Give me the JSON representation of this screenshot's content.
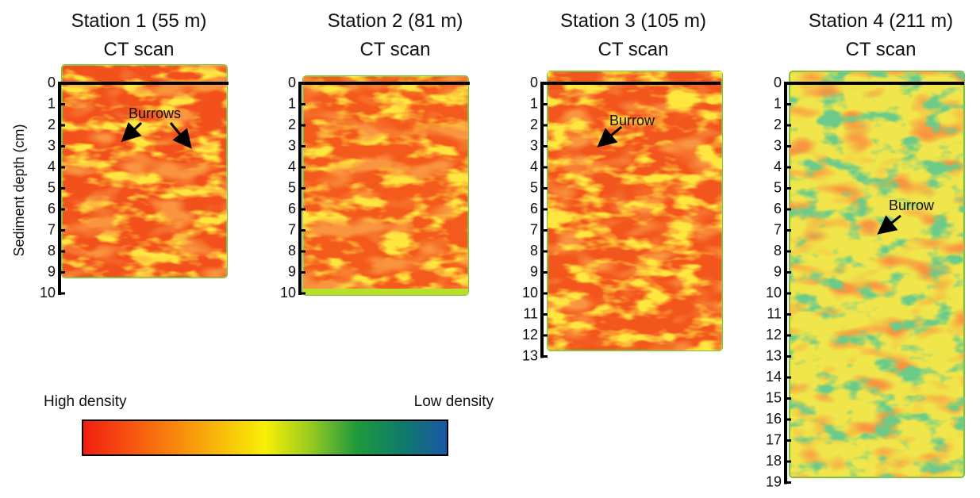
{
  "y_axis_label": "Sediment depth (cm)",
  "panels": [
    {
      "title": "Station 1 (55 m)",
      "subtitle": "CT scan",
      "depth_ticks": [
        0,
        1,
        2,
        3,
        4,
        5,
        6,
        7,
        8,
        9,
        10
      ],
      "annotation": "Burrows"
    },
    {
      "title": "Station 2 (81 m)",
      "subtitle": "CT scan",
      "depth_ticks": [
        0,
        1,
        2,
        3,
        4,
        5,
        6,
        7,
        8,
        9,
        10
      ]
    },
    {
      "title": "Station 3 (105 m)",
      "subtitle": "CT scan",
      "depth_ticks": [
        0,
        1,
        2,
        3,
        4,
        5,
        6,
        7,
        8,
        9,
        10,
        11,
        12,
        13
      ],
      "annotation": "Burrow"
    },
    {
      "title": "Station 4 (211 m)",
      "subtitle": "CT scan",
      "depth_ticks": [
        0,
        1,
        2,
        3,
        4,
        5,
        6,
        7,
        8,
        9,
        10,
        11,
        12,
        13,
        14,
        15,
        16,
        17,
        18,
        19
      ],
      "annotation": "Burrow"
    }
  ],
  "colorbar": {
    "left_label": "High density",
    "right_label": "Low density"
  }
}
